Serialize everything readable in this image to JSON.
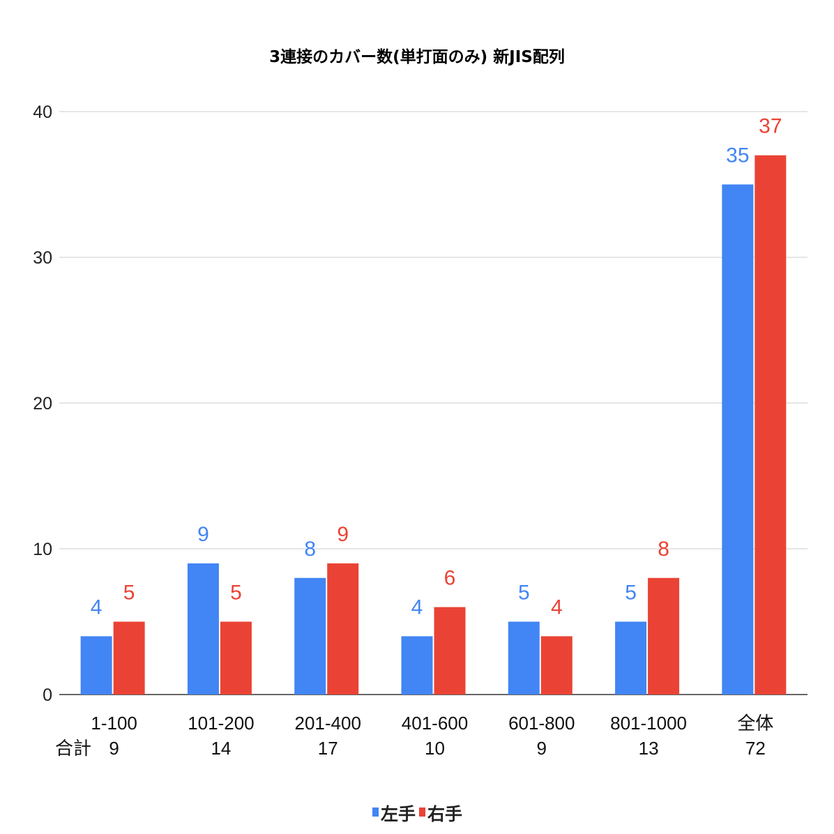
{
  "chart_data": {
    "type": "bar",
    "title": "3連接のカバー数(単打面のみ) 新JIS配列",
    "categories": [
      "1-100",
      "101-200",
      "201-400",
      "401-600",
      "601-800",
      "801-1000",
      "全体"
    ],
    "totals_label": "合計",
    "totals": [
      "9",
      "14",
      "17",
      "10",
      "9",
      "13",
      "72"
    ],
    "series": [
      {
        "name": "左手",
        "color": "#4285f4",
        "values": [
          4,
          9,
          8,
          4,
          5,
          5,
          35
        ]
      },
      {
        "name": "右手",
        "color": "#ea4335",
        "values": [
          5,
          5,
          9,
          6,
          4,
          8,
          37
        ]
      }
    ],
    "ylim": [
      0,
      40
    ],
    "yticks": [
      0,
      10,
      20,
      30,
      40
    ],
    "grid": true,
    "legend_position": "bottom",
    "data_labels": true
  }
}
